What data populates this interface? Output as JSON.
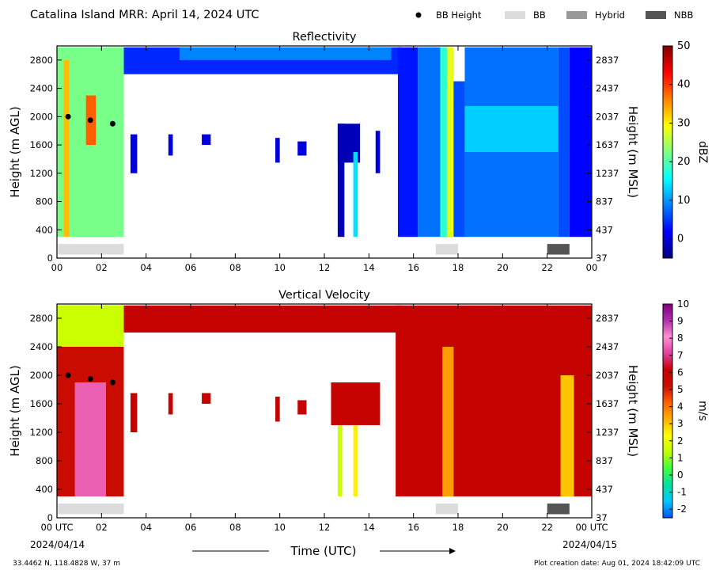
{
  "figure": {
    "title": "Catalina Island MRR:  April 14, 2024 UTC",
    "location": "33.4462 N, 118.4828 W, 37 m",
    "creation_date": "Plot creation date: Aug 01, 2024 18:42:09 UTC",
    "xlabel": "Time (UTC)",
    "start_date": "2024/04/14",
    "end_date": "2024/04/15"
  },
  "legend": {
    "entries": [
      {
        "label": "BB Height",
        "kind": "dot",
        "color": "#000000"
      },
      {
        "label": "BB",
        "kind": "box",
        "color": "#dcdcdc"
      },
      {
        "label": "Hybrid",
        "kind": "box",
        "color": "#999999"
      },
      {
        "label": "NBB",
        "kind": "box",
        "color": "#555555"
      }
    ]
  },
  "chart_data": [
    {
      "type": "heatmap",
      "title": "Reflectivity",
      "ylabel": "Height (m AGL)",
      "ylabel_right": "Height (m MSL)",
      "colorbar_label": "dBZ",
      "xlim": [
        0,
        24
      ],
      "ylim": [
        0,
        3000
      ],
      "xticks": [
        "00",
        "02",
        "04",
        "06",
        "08",
        "10",
        "12",
        "14",
        "16",
        "18",
        "20",
        "22",
        "00"
      ],
      "yticks_left": [
        "0",
        "400",
        "800",
        "1200",
        "1600",
        "2000",
        "2400",
        "2800"
      ],
      "yticks_right": [
        "37",
        "437",
        "837",
        "1237",
        "1637",
        "2037",
        "2437",
        "2837"
      ],
      "colorbar_range": [
        -5,
        50
      ],
      "colorbar_ticks": [
        "0",
        "10",
        "20",
        "30",
        "40",
        "50"
      ],
      "colormap": [
        "#00007f",
        "#0000ff",
        "#0080ff",
        "#00ffff",
        "#80ff80",
        "#ffff00",
        "#ff8000",
        "#ff0000",
        "#7f0000"
      ],
      "bb_height_points": [
        {
          "x": 0.5,
          "y": 2000
        },
        {
          "x": 1.5,
          "y": 1950
        },
        {
          "x": 2.5,
          "y": 1900
        }
      ],
      "bb_bars": [
        {
          "start": 0.05,
          "end": 3.0,
          "kind": "BB"
        },
        {
          "start": 17.0,
          "end": 18.0,
          "kind": "BB"
        },
        {
          "start": 22.0,
          "end": 23.0,
          "kind": "NBB"
        }
      ],
      "regions": [
        {
          "t0": 0.0,
          "t1": 3.0,
          "h0": 300,
          "h1": 2980,
          "value": 22
        },
        {
          "t0": 0.3,
          "t1": 0.55,
          "h0": 300,
          "h1": 2800,
          "value": 33
        },
        {
          "t0": 1.3,
          "t1": 1.75,
          "h0": 1600,
          "h1": 2300,
          "value": 38
        },
        {
          "t0": 3.0,
          "t1": 15.5,
          "h0": 2600,
          "h1": 2980,
          "value": 4
        },
        {
          "t0": 5.5,
          "t1": 15.0,
          "h0": 2800,
          "h1": 2980,
          "value": 9
        },
        {
          "t0": 3.3,
          "t1": 3.6,
          "h0": 1200,
          "h1": 1750,
          "value": 0
        },
        {
          "t0": 5.0,
          "t1": 5.2,
          "h0": 1450,
          "h1": 1750,
          "value": 0
        },
        {
          "t0": 6.5,
          "t1": 6.9,
          "h0": 1600,
          "h1": 1750,
          "value": 0
        },
        {
          "t0": 9.8,
          "t1": 10.0,
          "h0": 1350,
          "h1": 1700,
          "value": 0
        },
        {
          "t0": 10.8,
          "t1": 11.2,
          "h0": 1450,
          "h1": 1650,
          "value": 0
        },
        {
          "t0": 12.6,
          "t1": 13.6,
          "h0": 1350,
          "h1": 1900,
          "value": -2
        },
        {
          "t0": 12.6,
          "t1": 12.9,
          "h0": 300,
          "h1": 1900,
          "value": -2
        },
        {
          "t0": 13.3,
          "t1": 13.5,
          "h0": 300,
          "h1": 1500,
          "value": 14
        },
        {
          "t0": 14.3,
          "t1": 14.5,
          "h0": 1200,
          "h1": 1800,
          "value": 0
        },
        {
          "t0": 15.3,
          "t1": 16.2,
          "h0": 300,
          "h1": 2980,
          "value": 3
        },
        {
          "t0": 16.2,
          "t1": 17.2,
          "h0": 300,
          "h1": 2980,
          "value": 8
        },
        {
          "t0": 17.2,
          "t1": 17.5,
          "h0": 300,
          "h1": 2980,
          "value": 18
        },
        {
          "t0": 17.5,
          "t1": 17.8,
          "h0": 300,
          "h1": 2980,
          "value": 28
        },
        {
          "t0": 17.8,
          "t1": 18.3,
          "h0": 300,
          "h1": 2500,
          "value": 6
        },
        {
          "t0": 18.3,
          "t1": 22.5,
          "h0": 300,
          "h1": 2980,
          "value": 8
        },
        {
          "t0": 18.3,
          "t1": 22.5,
          "h0": 1500,
          "h1": 2150,
          "value": 13
        },
        {
          "t0": 22.5,
          "t1": 23.0,
          "h0": 300,
          "h1": 2980,
          "value": 6
        },
        {
          "t0": 23.0,
          "t1": 24.0,
          "h0": 300,
          "h1": 2980,
          "value": 2
        }
      ]
    },
    {
      "type": "heatmap",
      "title": "Vertical Velocity",
      "ylabel": "Height (m AGL)",
      "ylabel_right": "Height (m MSL)",
      "colorbar_label": "m/s",
      "xlim": [
        0,
        24
      ],
      "ylim": [
        0,
        3000
      ],
      "xticks": [
        "00 UTC",
        "02",
        "04",
        "06",
        "08",
        "10",
        "12",
        "14",
        "16",
        "18",
        "20",
        "22",
        "00 UTC"
      ],
      "yticks_left": [
        "0",
        "400",
        "800",
        "1200",
        "1600",
        "2000",
        "2400",
        "2800"
      ],
      "yticks_right": [
        "37",
        "437",
        "837",
        "1237",
        "1637",
        "2037",
        "2437",
        "2837"
      ],
      "colorbar_range": [
        -2.5,
        10
      ],
      "colorbar_ticks": [
        "-2",
        "-1",
        "0",
        "1",
        "2",
        "3",
        "4",
        "5",
        "6",
        "7",
        "8",
        "9",
        "10"
      ],
      "colormap": [
        "#0050ff",
        "#00c8ff",
        "#00e0a0",
        "#40ff40",
        "#c0ff00",
        "#ffff00",
        "#ffb000",
        "#ff6000",
        "#cc1000",
        "#c40000",
        "#e040a0",
        "#ff90d0",
        "#b030b0",
        "#800080"
      ],
      "bb_height_points": [
        {
          "x": 0.5,
          "y": 2000
        },
        {
          "x": 1.5,
          "y": 1950
        },
        {
          "x": 2.5,
          "y": 1900
        }
      ],
      "bb_bars": [
        {
          "start": 0.05,
          "end": 3.0,
          "kind": "BB"
        },
        {
          "start": 17.0,
          "end": 18.0,
          "kind": "BB"
        },
        {
          "start": 22.0,
          "end": 23.0,
          "kind": "NBB"
        }
      ],
      "regions": [
        {
          "t0": 0.0,
          "t1": 3.0,
          "h0": 300,
          "h1": 2980,
          "value": 5.5
        },
        {
          "t0": 0.0,
          "t1": 3.0,
          "h0": 2400,
          "h1": 2980,
          "value": 1.5
        },
        {
          "t0": 0.8,
          "t1": 2.2,
          "h0": 300,
          "h1": 1900,
          "value": 7.5
        },
        {
          "t0": 3.0,
          "t1": 15.5,
          "h0": 2600,
          "h1": 2980,
          "value": 6
        },
        {
          "t0": 3.3,
          "t1": 3.6,
          "h0": 1200,
          "h1": 1750,
          "value": 6
        },
        {
          "t0": 5.0,
          "t1": 5.2,
          "h0": 1450,
          "h1": 1750,
          "value": 6
        },
        {
          "t0": 6.5,
          "t1": 6.9,
          "h0": 1600,
          "h1": 1750,
          "value": 6
        },
        {
          "t0": 9.8,
          "t1": 10.0,
          "h0": 1350,
          "h1": 1700,
          "value": 6
        },
        {
          "t0": 10.8,
          "t1": 11.2,
          "h0": 1450,
          "h1": 1650,
          "value": 6
        },
        {
          "t0": 12.3,
          "t1": 14.5,
          "h0": 1300,
          "h1": 1900,
          "value": 6
        },
        {
          "t0": 12.6,
          "t1": 12.8,
          "h0": 300,
          "h1": 1300,
          "value": 1.5
        },
        {
          "t0": 13.3,
          "t1": 13.5,
          "h0": 300,
          "h1": 1300,
          "value": 2.5
        },
        {
          "t0": 15.2,
          "t1": 24.0,
          "h0": 300,
          "h1": 2980,
          "value": 6
        },
        {
          "t0": 17.3,
          "t1": 17.8,
          "h0": 300,
          "h1": 2400,
          "value": 3.5
        },
        {
          "t0": 22.6,
          "t1": 23.2,
          "h0": 300,
          "h1": 2000,
          "value": 3
        }
      ]
    }
  ]
}
